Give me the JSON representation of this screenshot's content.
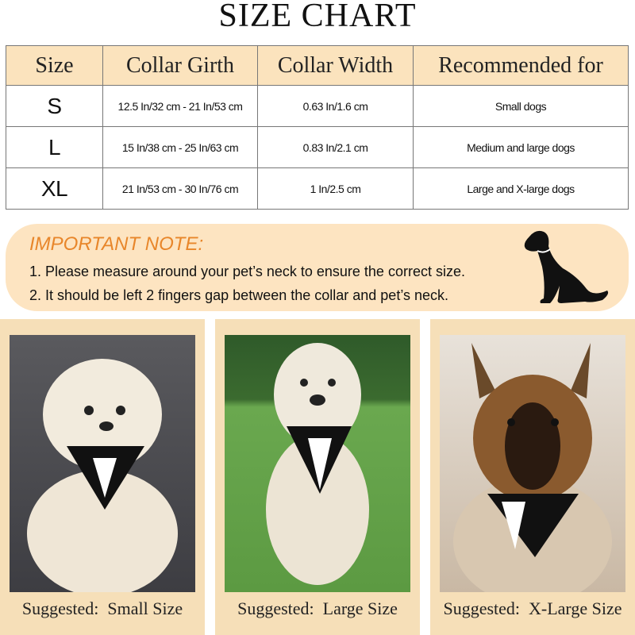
{
  "title": "SIZE CHART",
  "table": {
    "headers": [
      "Size",
      "Collar Girth",
      "Collar Width",
      "Recommended for"
    ],
    "rows": [
      [
        "S",
        "12.5 In/32 cm - 21 In/53 cm",
        "0.63 In/1.6 cm",
        "Small dogs"
      ],
      [
        "L",
        "15 In/38 cm - 25 In/63 cm",
        "0.83 In/2.1 cm",
        "Medium and large dogs"
      ],
      [
        "XL",
        "21 In/53 cm - 30 In/76 cm",
        "1 In/2.5 cm",
        "Large and X-large dogs"
      ]
    ]
  },
  "note": {
    "title": "IMPORTANT NOTE:",
    "items": [
      "1. Please measure around your pet’s neck to ensure the correct size.",
      "2. It should be left 2 fingers gap between the collar and pet’s neck."
    ],
    "icon": "sitting-dog-silhouette-icon"
  },
  "cards": [
    {
      "caption": "Suggested:  Small Size",
      "photo": "small white dog wearing tuxedo bandana"
    },
    {
      "caption": "Suggested:  Large Size",
      "photo": "doodle dog wearing tuxedo bandana on grass"
    },
    {
      "caption": "Suggested:  X-Large Size",
      "photo": "german shepherd wearing tuxedo bandana"
    }
  ],
  "colors": {
    "header": "#fbe3bd",
    "note_bg": "#fde4c1",
    "note_title": "#e8862a",
    "card_bg": "#f6dfb8"
  }
}
